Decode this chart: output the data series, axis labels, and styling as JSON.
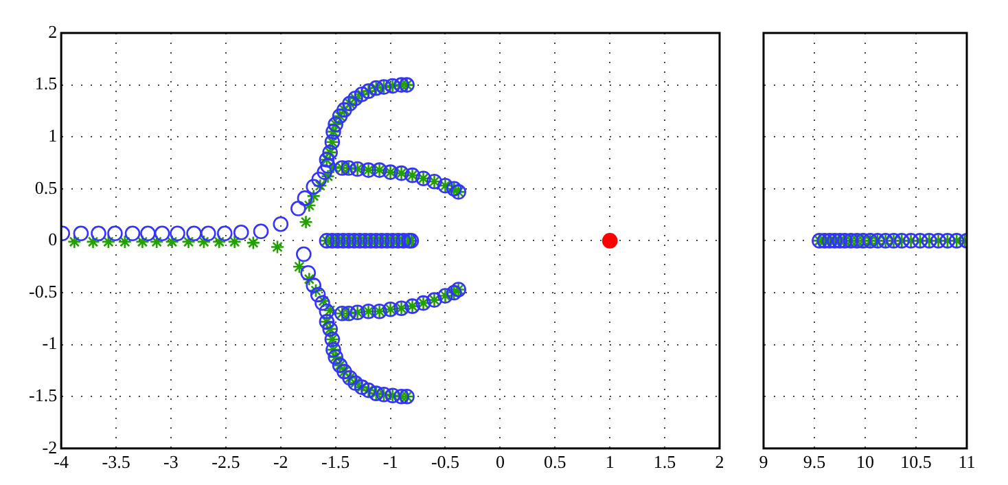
{
  "chart_data": [
    {
      "type": "scatter",
      "xlim": [
        -4,
        2
      ],
      "ylim": [
        -2,
        2
      ],
      "xticks": [
        -4,
        -3.5,
        -3,
        -2.5,
        -2,
        -1.5,
        -1,
        -0.5,
        0,
        0.5,
        1,
        1.5,
        2
      ],
      "yticks": [
        -2,
        -1.5,
        -1,
        -0.5,
        0,
        0.5,
        1,
        1.5,
        2
      ],
      "grid": true,
      "legend": false,
      "series": [
        {
          "color": "#3333ff",
          "marker": "circle",
          "x": [
            -3.99,
            -3.82,
            -3.66,
            -3.51,
            -3.35,
            -3.21,
            -3.08,
            -2.94,
            -2.79,
            -2.66,
            -2.51,
            -2.36,
            -2.18,
            -2.0,
            -1.84,
            -1.78,
            -1.7,
            -1.65,
            -1.6,
            -1.57,
            -1.79,
            -1.75,
            -1.7,
            -1.66,
            -1.62,
            -1.58,
            -1.58,
            -1.55,
            -1.53,
            -1.52,
            -1.5,
            -1.46,
            -1.42,
            -1.37,
            -1.32,
            -1.26,
            -1.2,
            -1.13,
            -1.06,
            -0.98,
            -0.9,
            -0.85,
            -1.44,
            -1.38,
            -1.3,
            -1.2,
            -1.1,
            -1.0,
            -0.9,
            -0.8,
            -0.7,
            -0.6,
            -0.5,
            -0.42,
            -0.38,
            -1.58,
            -1.53,
            -1.48,
            -1.43,
            -1.38,
            -1.33,
            -1.28,
            -1.23,
            -1.18,
            -1.13,
            -1.08,
            -1.03,
            -0.98,
            -0.93,
            -0.88,
            -0.83,
            -0.81,
            -1.44,
            -1.38,
            -1.3,
            -1.2,
            -1.1,
            -1.0,
            -0.9,
            -0.8,
            -0.7,
            -0.6,
            -0.5,
            -0.42,
            -0.38,
            -1.58,
            -1.55,
            -1.53,
            -1.52,
            -1.5,
            -1.46,
            -1.42,
            -1.37,
            -1.32,
            -1.26,
            -1.2,
            -1.13,
            -1.06,
            -0.98,
            -0.9,
            -0.85
          ],
          "values": [
            0.07,
            0.07,
            0.07,
            0.07,
            0.07,
            0.07,
            0.07,
            0.07,
            0.07,
            0.07,
            0.07,
            0.08,
            0.09,
            0.16,
            0.31,
            0.41,
            0.52,
            0.59,
            0.66,
            0.72,
            -0.13,
            -0.31,
            -0.43,
            -0.52,
            -0.6,
            -0.68,
            0.78,
            0.85,
            0.95,
            1.05,
            1.12,
            1.2,
            1.26,
            1.32,
            1.37,
            1.41,
            1.44,
            1.47,
            1.48,
            1.49,
            1.5,
            1.5,
            0.7,
            0.7,
            0.69,
            0.68,
            0.68,
            0.66,
            0.65,
            0.63,
            0.6,
            0.57,
            0.53,
            0.5,
            0.47,
            0,
            0,
            0,
            0,
            0,
            0,
            0,
            0,
            0,
            0,
            0,
            0,
            0,
            0,
            0,
            0,
            0,
            -0.7,
            -0.7,
            -0.69,
            -0.68,
            -0.68,
            -0.66,
            -0.65,
            -0.63,
            -0.6,
            -0.57,
            -0.53,
            -0.5,
            -0.47,
            -0.78,
            -0.85,
            -0.95,
            -1.05,
            -1.12,
            -1.2,
            -1.26,
            -1.32,
            -1.37,
            -1.41,
            -1.44,
            -1.47,
            -1.48,
            -1.49,
            -1.5,
            -1.5
          ]
        },
        {
          "color": "#22a000",
          "marker": "cross",
          "x": [
            -3.88,
            -3.71,
            -3.57,
            -3.42,
            -3.26,
            -3.13,
            -2.99,
            -2.84,
            -2.7,
            -2.56,
            -2.42,
            -2.25,
            -2.03,
            -1.77,
            -1.74,
            -1.7,
            -1.64,
            -1.57,
            -1.52,
            -1.83,
            -1.74,
            -1.68,
            -1.61,
            -1.55,
            -1.58,
            -1.55,
            -1.53,
            -1.52,
            -1.5,
            -1.46,
            -1.42,
            -1.37,
            -1.32,
            -1.26,
            -1.2,
            -1.13,
            -1.06,
            -0.98,
            -0.9,
            -0.85,
            -1.44,
            -1.38,
            -1.3,
            -1.2,
            -1.1,
            -1.0,
            -0.9,
            -0.8,
            -0.7,
            -0.6,
            -0.5,
            -0.42,
            -0.38,
            -1.58,
            -1.53,
            -1.48,
            -1.43,
            -1.38,
            -1.33,
            -1.28,
            -1.23,
            -1.18,
            -1.13,
            -1.08,
            -1.03,
            -0.98,
            -0.93,
            -0.88,
            -0.83,
            -0.81,
            -1.44,
            -1.38,
            -1.3,
            -1.2,
            -1.1,
            -1.0,
            -0.9,
            -0.8,
            -0.7,
            -0.6,
            -0.5,
            -0.42,
            -0.38,
            -1.58,
            -1.55,
            -1.53,
            -1.52,
            -1.5,
            -1.46,
            -1.42,
            -1.37,
            -1.32,
            -1.26,
            -1.2,
            -1.13,
            -1.06,
            -0.98,
            -0.9,
            -0.85
          ],
          "values": [
            -0.01,
            -0.01,
            -0.01,
            -0.01,
            -0.01,
            -0.01,
            -0.01,
            -0.01,
            -0.01,
            -0.01,
            -0.01,
            -0.02,
            -0.06,
            0.18,
            0.34,
            0.43,
            0.53,
            0.62,
            0.71,
            -0.25,
            -0.37,
            -0.48,
            -0.58,
            -0.67,
            0.78,
            0.85,
            0.95,
            1.05,
            1.12,
            1.2,
            1.26,
            1.32,
            1.37,
            1.41,
            1.44,
            1.47,
            1.48,
            1.49,
            1.5,
            1.5,
            0.7,
            0.7,
            0.69,
            0.68,
            0.68,
            0.66,
            0.65,
            0.63,
            0.6,
            0.57,
            0.53,
            0.5,
            0.47,
            0,
            0,
            0,
            0,
            0,
            0,
            0,
            0,
            0,
            0,
            0,
            0,
            0,
            0,
            0,
            0,
            0,
            -0.7,
            -0.7,
            -0.69,
            -0.68,
            -0.68,
            -0.66,
            -0.65,
            -0.63,
            -0.6,
            -0.57,
            -0.53,
            -0.5,
            -0.47,
            -0.78,
            -0.85,
            -0.95,
            -1.05,
            -1.12,
            -1.2,
            -1.26,
            -1.32,
            -1.37,
            -1.41,
            -1.44,
            -1.47,
            -1.48,
            -1.49,
            -1.5,
            -1.5
          ]
        },
        {
          "color": "#ff0000",
          "marker": "circle",
          "x": [
            1
          ],
          "values": [
            0
          ]
        }
      ]
    },
    {
      "type": "scatter",
      "xlim": [
        9,
        11
      ],
      "ylim": [
        -2,
        2
      ],
      "xticks": [
        9,
        9.5,
        10,
        10.5,
        11
      ],
      "yticks": [
        -2,
        -1.5,
        -1,
        -0.5,
        0,
        0.5,
        1,
        1.5,
        2
      ],
      "grid": true,
      "legend": false,
      "tick_labels": "x",
      "series": [
        {
          "color": "#3333ff",
          "marker": "circle",
          "x": [
            9.55,
            9.6,
            9.65,
            9.7,
            9.75,
            9.8,
            9.86,
            9.92,
            9.98,
            10.05,
            10.12,
            10.2,
            10.28,
            10.36,
            10.45,
            10.54,
            10.63,
            10.72,
            10.81,
            10.9,
            11.0
          ],
          "values": [
            0,
            0,
            0,
            0,
            0,
            0,
            0,
            0,
            0,
            0,
            0,
            0,
            0,
            0,
            0,
            0,
            0,
            0,
            0,
            0,
            0
          ]
        },
        {
          "color": "#22a000",
          "marker": "cross",
          "x": [
            9.55,
            9.6,
            9.65,
            9.7,
            9.75,
            9.8,
            9.86,
            9.92,
            9.98,
            10.05,
            10.12,
            10.2,
            10.28,
            10.36,
            10.45,
            10.54,
            10.63,
            10.72,
            10.81,
            10.9,
            10.98
          ],
          "values": [
            0,
            0,
            0,
            0,
            0,
            0,
            0,
            0,
            0,
            0,
            0,
            0,
            0,
            0,
            0,
            0,
            0,
            0,
            0,
            0,
            0
          ]
        }
      ]
    }
  ]
}
